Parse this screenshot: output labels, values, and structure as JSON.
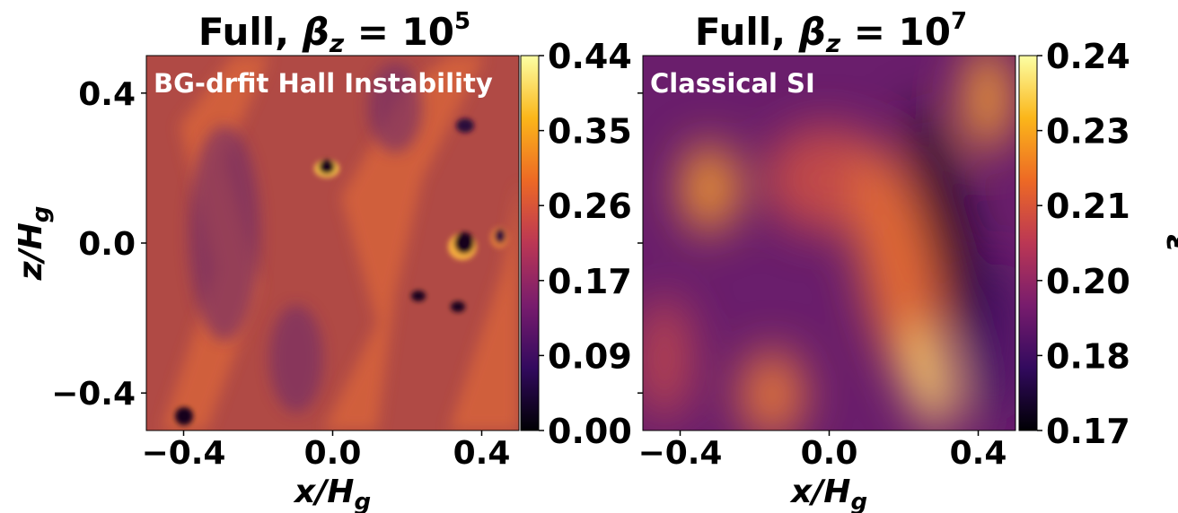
{
  "chart_data": [
    {
      "type": "heatmap",
      "title_parts": [
        "Full, ",
        "β",
        "z",
        " = 10",
        "5"
      ],
      "annotation": "BG-drfit Hall Instability",
      "xlabel_parts": [
        "x/H",
        "g"
      ],
      "ylabel_parts": [
        "z/H",
        "g"
      ],
      "xlim": [
        -0.5,
        0.5
      ],
      "ylim": [
        -0.5,
        0.5
      ],
      "xticks": [
        {
          "value": -0.4,
          "label": "−0.4"
        },
        {
          "value": 0,
          "label": "0.0"
        },
        0.4
      ],
      "yticks": [
        {
          "value": -0.4,
          "label": "−0.4"
        },
        {
          "value": 0,
          "label": "0.0"
        },
        0.4
      ],
      "colormap": "inferno",
      "clim": [
        0,
        0.435
      ],
      "cticks": [
        {
          "value": 0,
          "label": "0.00"
        },
        {
          "value": 0.087,
          "label": "0.09"
        },
        {
          "value": 0.174,
          "label": "0.17"
        },
        {
          "value": 0.261,
          "label": "0.26"
        },
        {
          "value": 0.348,
          "label": "0.35"
        },
        {
          "value": 0.435,
          "label": "0.44"
        }
      ]
    },
    {
      "type": "heatmap",
      "title_parts": [
        "Full, ",
        "β",
        "z",
        " = 10",
        "7"
      ],
      "annotation": "Classical SI",
      "xlabel_parts": [
        "x/H",
        "g"
      ],
      "xlim": [
        -0.5,
        0.5
      ],
      "ylim": [
        -0.5,
        0.5
      ],
      "xticks": [
        {
          "value": -0.4,
          "label": "−0.4"
        },
        {
          "value": 0,
          "label": "0.0"
        },
        0.4
      ],
      "yticks": [
        -0.4,
        0,
        0.4
      ],
      "ytick_labels": false,
      "colormap": "inferno",
      "clim": [
        0.17,
        0.24
      ],
      "cticks": [
        0.17,
        {
          "value": 0.184,
          "label": "0.18"
        },
        {
          "value": 0.198,
          "label": "0.20"
        },
        {
          "value": 0.212,
          "label": "0.21"
        },
        {
          "value": 0.226,
          "label": "0.23"
        },
        0.24
      ],
      "colorbar_label": "ε"
    }
  ]
}
